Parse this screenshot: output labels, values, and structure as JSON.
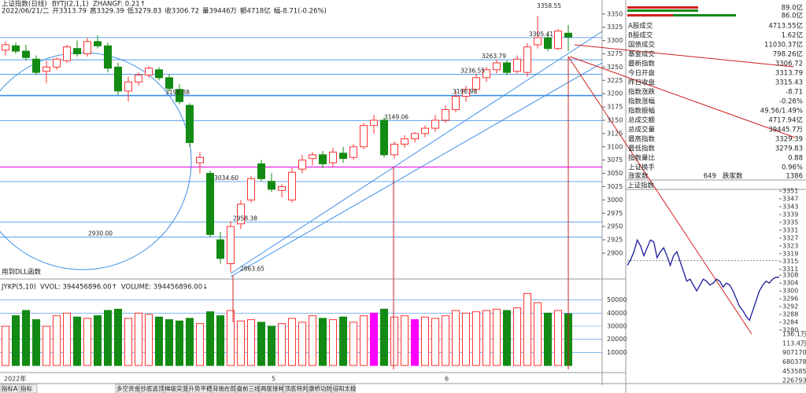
{
  "header": {
    "title": "上证指数(日线)",
    "indicator": "BYTJ(2,1,1)",
    "indicator_value": "ZHANGF: 0.21↑",
    "quote": [
      {
        "text": "2022/06/21/二",
        "color": "#222222"
      },
      {
        "text": "开3313.79",
        "color": "#d00000"
      },
      {
        "text": "高3329.39",
        "color": "#d00000"
      },
      {
        "text": "低3279.83",
        "color": "#138a13"
      },
      {
        "text": "收3306.72",
        "color": "#138a13"
      },
      {
        "text": "量39446万",
        "color": "#d00000"
      },
      {
        "text": "额4718亿",
        "color": "#222222"
      },
      {
        "text": "幅-8.71(-0.26%)",
        "color": "#138a13"
      }
    ]
  },
  "main_chart": {
    "type": "candlestick",
    "open": [
      3282,
      3290,
      3280,
      3265,
      3242,
      3250,
      3262,
      3285,
      3275,
      3298,
      3290,
      3250,
      3205,
      3222,
      3235,
      3245,
      3230,
      3208,
      3178,
      3070,
      3050,
      2925,
      2880,
      2955,
      3000,
      3068,
      3035,
      3018,
      3000,
      3058,
      3078,
      3085,
      3070,
      3088,
      3080,
      3100,
      3140,
      3150,
      3085,
      3105,
      3115,
      3125,
      3135,
      3150,
      3170,
      3195,
      3208,
      3230,
      3245,
      3258,
      3242,
      3240,
      3292,
      3305,
      3285,
      3313.79
    ],
    "high": [
      3298,
      3296,
      3292,
      3272,
      3262,
      3268,
      3292,
      3300,
      3305,
      3310,
      3296,
      3258,
      3232,
      3240,
      3252,
      3250,
      3236,
      3218,
      3182,
      3090,
      3055,
      2940,
      2960,
      3000,
      3045,
      3075,
      3050,
      3030,
      3060,
      3085,
      3090,
      3092,
      3098,
      3100,
      3105,
      3145,
      3160,
      3155,
      3110,
      3122,
      3128,
      3140,
      3160,
      3178,
      3205,
      3215,
      3238,
      3250,
      3263.79,
      3262,
      3272,
      3295,
      3358.55,
      3312,
      3322,
      3329.39
    ],
    "low": [
      3272,
      3275,
      3262,
      3235,
      3220,
      3245,
      3258,
      3270,
      3270,
      3285,
      3240,
      3198,
      3185,
      3215,
      3230,
      3225,
      3205,
      3180,
      3100,
      3050,
      2930,
      2880,
      2863.65,
      2945,
      2995,
      3035,
      3015,
      3005,
      2995,
      3050,
      3065,
      3060,
      3062,
      3070,
      3075,
      3095,
      3125,
      3080,
      3078,
      3098,
      3108,
      3118,
      3128,
      3145,
      3165,
      3185,
      3200,
      3222,
      3238,
      3235,
      3238,
      3232,
      3285,
      3280,
      3282,
      3279.83
    ],
    "close": [
      3292,
      3280,
      3268,
      3240,
      3250,
      3265,
      3288,
      3275,
      3298,
      3290,
      3248,
      3205,
      3222,
      3235,
      3248,
      3230,
      3210,
      3185,
      3108,
      3080,
      2935,
      2890,
      2950,
      2992,
      3040,
      3040,
      3020,
      3025,
      3052,
      3075,
      3085,
      3068,
      3090,
      3078,
      3100,
      3140,
      3150,
      3085,
      3105,
      3115,
      3125,
      3135,
      3150,
      3170,
      3195,
      3208,
      3230,
      3245,
      3258,
      3240,
      3265,
      3288,
      3305.41,
      3285,
      3318,
      3306.72
    ],
    "up_color": "#ff3232",
    "down_color": "#138a13",
    "ylim": [
      2855,
      3360
    ],
    "yticks": [
      2900,
      2925,
      2950,
      2975,
      3000,
      3025,
      3050,
      3075,
      3100,
      3125,
      3150,
      3175,
      3200,
      3225,
      3250,
      3275,
      3300,
      3325,
      3350
    ],
    "annotations": [
      3358.55,
      3305.41,
      3263.79,
      3236.55,
      3196.98,
      {
        "value": 3195.88,
        "label": "3195.88"
      },
      3149.06,
      {
        "value": 3034.6,
        "label": "3034.60"
      },
      2958.38,
      {
        "value": 2930,
        "label": "2930.00"
      },
      2863.65
    ],
    "support_line": 3062,
    "note": "用到DLL函数",
    "x_labels": [
      "2022年",
      "5",
      "6"
    ]
  },
  "volume_chart": {
    "type": "bar",
    "title": [
      {
        "text": "JYKP(5,10)",
        "color": "#222222"
      },
      {
        "text": "VVOL: 394456896.00↑",
        "color": "#2050c0"
      },
      {
        "text": "VOLUME: 394456896.00↓",
        "color": "#e000e0"
      }
    ],
    "values": [
      30000,
      38000,
      42000,
      35000,
      30000,
      38000,
      40000,
      37000,
      36000,
      38000,
      42000,
      43000,
      36000,
      40000,
      39000,
      37000,
      35000,
      34000,
      36000,
      32000,
      41000,
      38000,
      42000,
      34000,
      35000,
      33000,
      30000,
      32000,
      36000,
      33000,
      38000,
      36000,
      35000,
      37000,
      33000,
      38000,
      40000,
      43000,
      37000,
      38000,
      35000,
      37000,
      36000,
      38000,
      42000,
      40000,
      41000,
      42000,
      43000,
      42000,
      44000,
      55000,
      48000,
      40000,
      42000,
      39446
    ],
    "colors": [
      "#ff3232",
      "#138a13",
      "#138a13",
      "#138a13",
      "#ff3232",
      "#ff3232",
      "#ff3232",
      "#138a13",
      "#ff3232",
      "#138a13",
      "#138a13",
      "#138a13",
      "#ff3232",
      "#ff3232",
      "#ff3232",
      "#138a13",
      "#138a13",
      "#138a13",
      "#138a13",
      "#ff3232",
      "#138a13",
      "#138a13",
      "#ff3232",
      "#ff3232",
      "#ff3232",
      "#138a13",
      "#138a13",
      "#ff3232",
      "#ff3232",
      "#ff3232",
      "#ff3232",
      "#138a13",
      "#ff3232",
      "#138a13",
      "#ff3232",
      "#ff3232",
      "#ff00ff",
      "#138a13",
      "#ff3232",
      "#ff3232",
      "#ff00ff",
      "#ff3232",
      "#ff3232",
      "#ff3232",
      "#ff3232",
      "#ff3232",
      "#ff3232",
      "#ff3232",
      "#ff3232",
      "#138a13",
      "#ff3232",
      "#ff3232",
      "#ff3232",
      "#138a13",
      "#ff3232",
      "#138a13"
    ],
    "ylim": [
      0,
      60000
    ],
    "yticks": [
      10000,
      20000,
      30000,
      40000,
      50000
    ]
  },
  "right_panel": {
    "bar_labels": [
      "89.0亿",
      "86.0亿"
    ],
    "rows": [
      {
        "label": "A股成交",
        "value": "4713.55亿",
        "color": "#d00000"
      },
      {
        "label": "B股成交",
        "value": "1.62亿",
        "color": "#d00000"
      },
      {
        "label": "国债成交",
        "value": "11030.37亿",
        "color": "#d00000"
      },
      {
        "label": "基金成交",
        "value": "798.26亿",
        "color": "#d00000"
      },
      {
        "label": "最新指数",
        "value": "3306.72",
        "color": "#222222"
      },
      {
        "label": "今日开盘",
        "value": "3313.79",
        "color": "#138a13"
      },
      {
        "label": "昨日收盘",
        "value": "3315.43",
        "color": "#222222"
      },
      {
        "label": "指数涨跌",
        "value": "-8.71",
        "color": "#138a13"
      },
      {
        "label": "指数涨幅",
        "value": "-0.26%",
        "color": "#138a13"
      },
      {
        "label": "指数振幅",
        "value": "49.56/1.49%",
        "color": "#222222"
      },
      {
        "label": "总成交额",
        "value": "4717.94亿",
        "color": "#d00000"
      },
      {
        "label": "总成交量",
        "value": "39445.7万",
        "color": "#d00000"
      },
      {
        "label": "最高指数",
        "value": "3329.39",
        "color": "#d00000"
      },
      {
        "label": "最低指数",
        "value": "3279.83",
        "color": "#d00000"
      },
      {
        "label": "指数量比",
        "value": "0.88",
        "color": "#138a13"
      },
      {
        "label": "上证换手",
        "value": "0.96%",
        "color": "#222222"
      }
    ],
    "breadth": {
      "up_label": "涨家数",
      "up": 649,
      "down_label": "跌家数",
      "down": 1386
    }
  },
  "intraday": {
    "type": "line",
    "title": "上证指数",
    "values": [
      3313,
      3316,
      3320,
      3326,
      3323,
      3318,
      3322,
      3326,
      3325,
      3317,
      3320,
      3322,
      3318,
      3313,
      3318,
      3320,
      3315,
      3310,
      3305,
      3306,
      3303,
      3300,
      3303,
      3306,
      3305,
      3303,
      3304,
      3306,
      3305,
      3302,
      3304,
      3303,
      3300,
      3296,
      3292,
      3290,
      3287,
      3285,
      3290,
      3295,
      3300,
      3303,
      3305,
      3304,
      3306,
      3307,
      3307
    ],
    "color": "#1a1a9a",
    "reference": 3315.43,
    "ylim": [
      3280,
      3351
    ],
    "yticks": [
      3351,
      3347,
      3343,
      3339,
      3335,
      3331,
      3327,
      3323,
      3319,
      3315,
      3311,
      3308,
      3304,
      3300,
      3296,
      3292,
      3288,
      3284,
      3280
    ],
    "volume_ylim": [
      0,
      1360758
    ],
    "volume_ticks": [
      {
        "value": 1360758,
        "label": "136.1万"
      },
      {
        "value": 1133965,
        "label": "113.4万"
      },
      907170,
      680378,
      453585,
      226793
    ]
  },
  "tabs": [
    "指标A",
    "指标",
    "多空资金",
    "抄底逃顶",
    "梯级突变",
    "升势平稳",
    "背驰在即",
    "盘前三线",
    "两筐接种",
    "顶底特判",
    "康桥功防",
    "倍阳太极"
  ]
}
